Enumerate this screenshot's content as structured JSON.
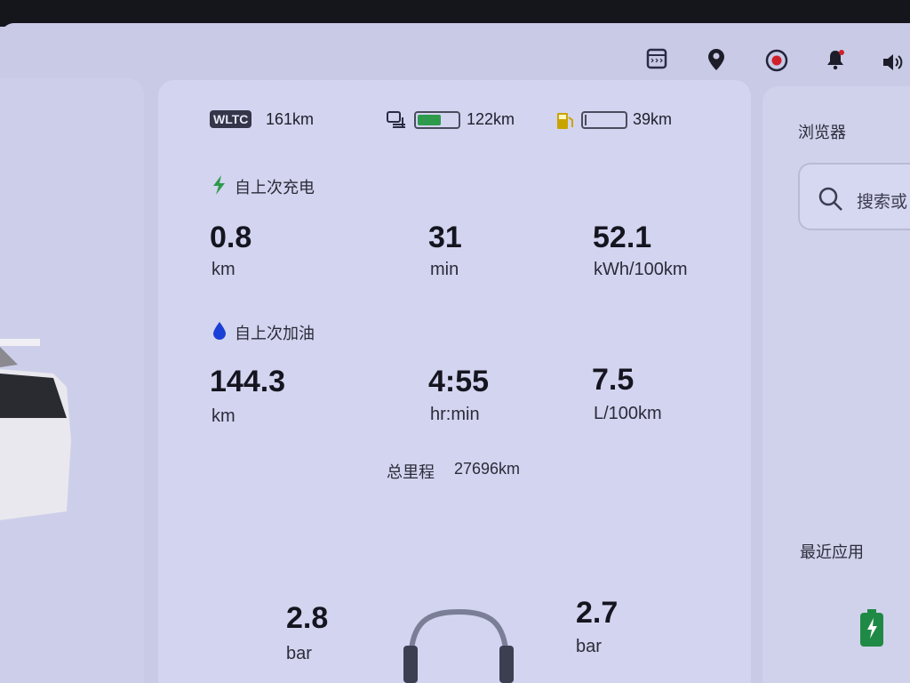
{
  "status_bar": {
    "icons": [
      "calculator-icon",
      "location-pin-icon",
      "record-icon",
      "notification-bell-icon",
      "volume-icon"
    ],
    "record_color": "#d0202a"
  },
  "range": {
    "wltc_badge": "WLTC",
    "wltc_range": "161km",
    "battery_range": "122km",
    "battery_level": 0.6,
    "fuel_range": "39km",
    "fuel_level": 0.05
  },
  "since_charge": {
    "title": "自上次充电",
    "distance": {
      "value": "0.8",
      "unit": "km"
    },
    "time": {
      "value": "31",
      "unit": "min"
    },
    "consumption": {
      "value": "52.1",
      "unit": "kWh/100km"
    }
  },
  "since_refuel": {
    "title": "自上次加油",
    "distance": {
      "value": "144.3",
      "unit": "km"
    },
    "time": {
      "value": "4:55",
      "unit": "hr:min"
    },
    "consumption": {
      "value": "7.5",
      "unit": "L/100km"
    }
  },
  "odometer": {
    "label": "总里程",
    "value": "27696km"
  },
  "tires": {
    "front_left": {
      "value": "2.8",
      "unit": "bar"
    },
    "front_right": {
      "value": "2.7",
      "unit": "bar"
    }
  },
  "right_panel": {
    "browser_title": "浏览器",
    "search_placeholder": "搜索或",
    "recent_apps": "最近应用"
  },
  "colors": {
    "charge": "#2e9a4c",
    "fuel_drop": "#1a3fd6",
    "fuel_pump": "#c9a400"
  }
}
